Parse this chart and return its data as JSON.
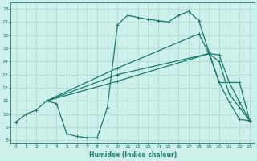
{
  "xlabel": "Humidex (Indice chaleur)",
  "xlim": [
    -0.5,
    23.5
  ],
  "ylim": [
    7.8,
    18.5
  ],
  "yticks": [
    8,
    9,
    10,
    11,
    12,
    13,
    14,
    15,
    16,
    17,
    18
  ],
  "xticks": [
    0,
    1,
    2,
    3,
    4,
    5,
    6,
    7,
    8,
    9,
    10,
    11,
    12,
    13,
    14,
    15,
    16,
    17,
    18,
    19,
    20,
    21,
    22,
    23
  ],
  "bg_color": "#cef0ea",
  "grid_color": "#aad8d2",
  "line_color": "#1a7a6e",
  "line_width": 0.9,
  "marker": "+",
  "marker_size": 3,
  "lines": [
    {
      "x": [
        0,
        1,
        2,
        3,
        4,
        5,
        6,
        7,
        8,
        9,
        10,
        11,
        12,
        13,
        14,
        15,
        16,
        17,
        18,
        19,
        20,
        21,
        22,
        23
      ],
      "y": [
        9.4,
        10.0,
        10.3,
        11.0,
        10.8,
        8.5,
        8.3,
        8.2,
        8.2,
        10.5,
        16.8,
        17.5,
        17.35,
        17.2,
        17.1,
        17.0,
        17.5,
        17.8,
        17.1,
        14.7,
        12.4,
        10.9,
        9.6,
        9.5
      ]
    },
    {
      "x": [
        3,
        10,
        18,
        19,
        20,
        21,
        22,
        23
      ],
      "y": [
        11.0,
        13.5,
        16.1,
        14.6,
        12.4,
        12.4,
        12.4,
        9.5
      ]
    },
    {
      "x": [
        3,
        10,
        19,
        20,
        21,
        22,
        23
      ],
      "y": [
        11.0,
        13.0,
        14.6,
        14.5,
        12.4,
        10.9,
        9.5
      ]
    },
    {
      "x": [
        3,
        10,
        19,
        20,
        21,
        22,
        23
      ],
      "y": [
        11.0,
        12.5,
        14.6,
        14.0,
        11.5,
        10.5,
        9.5
      ]
    }
  ]
}
